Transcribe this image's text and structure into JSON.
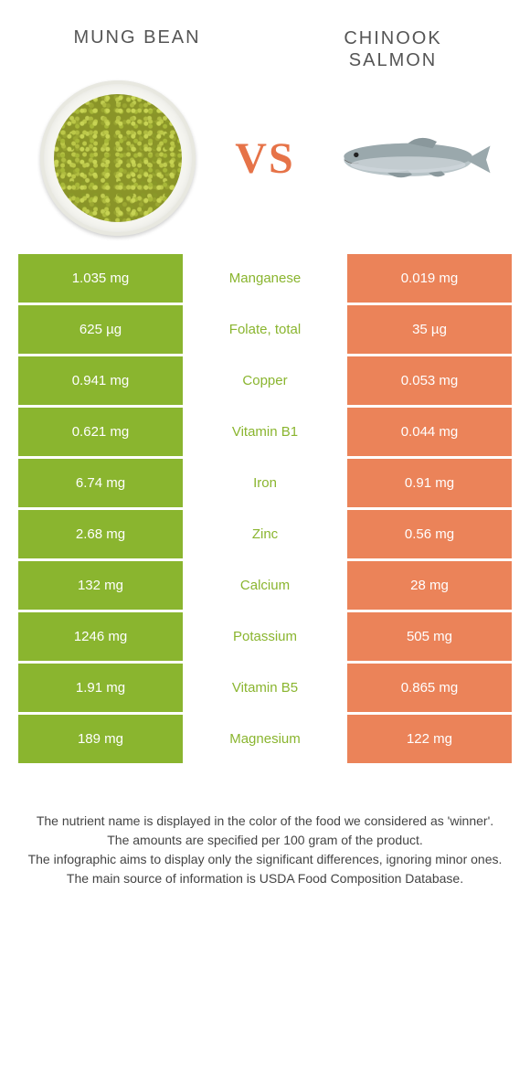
{
  "header": {
    "left_title": "MUNG BEAN",
    "right_title_line1": "CHINOOK",
    "right_title_line2": "SALMON",
    "vs": "VS"
  },
  "colors": {
    "green": "#8ab52f",
    "orange": "#eb8359",
    "vs_color": "#e67348"
  },
  "rows": [
    {
      "left": "1.035 mg",
      "label": "Manganese",
      "right": "0.019 mg",
      "winner": "left"
    },
    {
      "left": "625 µg",
      "label": "Folate, total",
      "right": "35 µg",
      "winner": "left"
    },
    {
      "left": "0.941 mg",
      "label": "Copper",
      "right": "0.053 mg",
      "winner": "left"
    },
    {
      "left": "0.621 mg",
      "label": "Vitamin B1",
      "right": "0.044 mg",
      "winner": "left"
    },
    {
      "left": "6.74 mg",
      "label": "Iron",
      "right": "0.91 mg",
      "winner": "left"
    },
    {
      "left": "2.68 mg",
      "label": "Zinc",
      "right": "0.56 mg",
      "winner": "left"
    },
    {
      "left": "132 mg",
      "label": "Calcium",
      "right": "28 mg",
      "winner": "left"
    },
    {
      "left": "1246 mg",
      "label": "Potassium",
      "right": "505 mg",
      "winner": "left"
    },
    {
      "left": "1.91 mg",
      "label": "Vitamin B5",
      "right": "0.865 mg",
      "winner": "left"
    },
    {
      "left": "189 mg",
      "label": "Magnesium",
      "right": "122 mg",
      "winner": "left"
    }
  ],
  "footer": {
    "line1": "The nutrient name is displayed in the color of the food we considered as 'winner'.",
    "line2": "The amounts are specified per 100 gram of the product.",
    "line3": "The infographic aims to display only the significant differences, ignoring minor ones.",
    "line4": "The main source of information is USDA Food Composition Database."
  }
}
